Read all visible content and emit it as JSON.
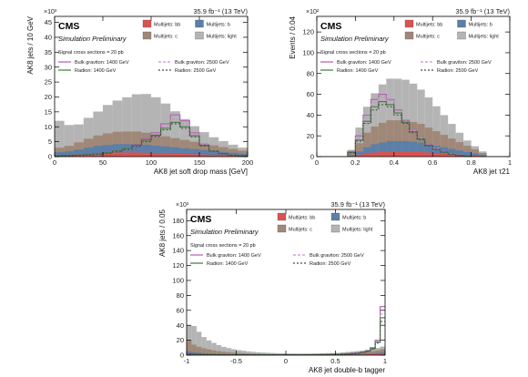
{
  "chart_data": [
    {
      "type": "area",
      "title": "",
      "header_left": "×10³",
      "header_right": "35.9 fb⁻¹ (13 TeV)",
      "cms_label": "CMS",
      "sim_label": "Simulation Preliminary",
      "signal_note": "Signal cross sections = 20 pb",
      "xlabel": "AK8 jet soft drop mass [GeV]",
      "ylabel": "AK8 jets / 10 GeV",
      "xlim": [
        0,
        200
      ],
      "ylim": [
        0,
        47000
      ],
      "xticks": [
        0,
        50,
        100,
        150,
        200
      ],
      "yticks": [
        0,
        5,
        10,
        15,
        20,
        25,
        30,
        35,
        40,
        45
      ],
      "bin_edges": [
        0,
        10,
        20,
        30,
        40,
        50,
        60,
        70,
        80,
        90,
        100,
        110,
        120,
        130,
        140,
        150,
        160,
        170,
        180,
        190,
        200
      ],
      "stack": [
        {
          "name": "Multijets: bb",
          "color": "#d9534f",
          "values": [
            500,
            600,
            800,
            1000,
            1200,
            1300,
            1400,
            1400,
            1400,
            1300,
            1200,
            1100,
            1000,
            900,
            800,
            700,
            600,
            500,
            400,
            300
          ]
        },
        {
          "name": "Multijets: b",
          "color": "#5b7fa8",
          "values": [
            1000,
            1200,
            1600,
            2000,
            2400,
            2600,
            2800,
            2800,
            2800,
            2700,
            2500,
            2300,
            2100,
            1900,
            1700,
            1500,
            1300,
            1100,
            900,
            700
          ]
        },
        {
          "name": "Multijets: c",
          "color": "#a08878",
          "values": [
            1500,
            1800,
            2400,
            3000,
            3500,
            3900,
            4100,
            4200,
            4200,
            4000,
            3700,
            3400,
            3100,
            2800,
            2500,
            2200,
            1900,
            1600,
            1300,
            1000
          ]
        },
        {
          "name": "Multijets: light",
          "color": "#b4b4b4",
          "values": [
            9000,
            7000,
            6000,
            7000,
            8000,
            9500,
            10500,
            11500,
            12500,
            13000,
            12500,
            11000,
            9000,
            7000,
            5200,
            3800,
            2700,
            2000,
            1400,
            1000
          ]
        }
      ],
      "signals": [
        {
          "name": "Bulk graviton: 1400 GeV",
          "color": "#b05fb0",
          "dash": "",
          "values": [
            300,
            400,
            500,
            700,
            900,
            1300,
            1900,
            2800,
            4000,
            6000,
            8000,
            11000,
            14000,
            12000,
            8000,
            4000,
            2000,
            1000,
            500,
            300
          ]
        },
        {
          "name": "Bulk graviton: 2500 GeV",
          "color": "#c98dc9",
          "dash": "3,2",
          "values": [
            200,
            300,
            400,
            600,
            800,
            1200,
            1700,
            2500,
            3600,
            5500,
            7500,
            10000,
            12500,
            11000,
            7500,
            4000,
            2000,
            1000,
            500,
            300
          ]
        },
        {
          "name": "Radion: 1400 GeV",
          "color": "#3d7a3d",
          "dash": "",
          "values": [
            300,
            400,
            500,
            700,
            900,
            1300,
            1900,
            2700,
            3800,
            5500,
            7200,
            9500,
            11500,
            10000,
            7000,
            3800,
            1900,
            1000,
            500,
            300
          ]
        },
        {
          "name": "Radion: 2500 GeV",
          "color": "#4a4a4a",
          "dash": "2,2",
          "values": [
            200,
            300,
            400,
            600,
            800,
            1100,
            1600,
            2400,
            3400,
            5000,
            6800,
            9000,
            11000,
            9500,
            6600,
            3600,
            1800,
            900,
            450,
            250
          ]
        }
      ]
    },
    {
      "type": "area",
      "title": "",
      "header_left": "×10²",
      "header_right": "35.9 fb⁻¹ (13 TeV)",
      "cms_label": "CMS",
      "sim_label": "Simulation Preliminary",
      "signal_note": "Signal cross sections = 20 pb",
      "xlabel": "AK8 jet τ21",
      "ylabel": "Events / 0.04",
      "xlim": [
        0,
        1
      ],
      "ylim": [
        0,
        13500
      ],
      "xticks": [
        0,
        0.2,
        0.4,
        0.6,
        0.8,
        1
      ],
      "yticks": [
        0,
        20,
        40,
        60,
        80,
        100,
        120
      ],
      "bin_edges": [
        0,
        0.04,
        0.08,
        0.12,
        0.16,
        0.2,
        0.24,
        0.28,
        0.32,
        0.36,
        0.4,
        0.44,
        0.48,
        0.52,
        0.56,
        0.6,
        0.64,
        0.68,
        0.72,
        0.76,
        0.8,
        0.84,
        0.88,
        0.92,
        0.96,
        1
      ],
      "stack": [
        {
          "name": "Multijets: bb",
          "color": "#d9534f",
          "values": [
            0,
            0,
            0,
            0,
            50,
            200,
            300,
            400,
            450,
            500,
            500,
            500,
            480,
            450,
            400,
            350,
            300,
            250,
            200,
            150,
            100,
            50,
            0,
            0,
            0
          ]
        },
        {
          "name": "Multijets: b",
          "color": "#5b7fa8",
          "values": [
            0,
            0,
            0,
            0,
            100,
            300,
            600,
            800,
            900,
            1000,
            1000,
            1000,
            950,
            900,
            800,
            700,
            600,
            500,
            400,
            300,
            200,
            100,
            0,
            0,
            0
          ]
        },
        {
          "name": "Multijets: c",
          "color": "#a08878",
          "values": [
            0,
            0,
            0,
            0,
            200,
            800,
            1400,
            1700,
            1900,
            2000,
            2000,
            2000,
            1900,
            1800,
            1600,
            1400,
            1200,
            1000,
            800,
            600,
            400,
            200,
            0,
            0,
            0
          ]
        },
        {
          "name": "Multijets: light",
          "color": "#b4b4b4",
          "values": [
            0,
            0,
            0,
            0,
            300,
            1500,
            2500,
            3200,
            3700,
            4000,
            4000,
            3900,
            3700,
            3300,
            2900,
            2400,
            1900,
            1400,
            900,
            500,
            300,
            150,
            0,
            0,
            0
          ]
        }
      ],
      "signals": [
        {
          "name": "Bulk graviton: 1400 GeV",
          "color": "#b05fb0",
          "dash": "",
          "values": [
            0,
            0,
            0,
            0,
            500,
            2000,
            4000,
            5500,
            6000,
            5500,
            4500,
            3500,
            2500,
            1800,
            1200,
            800,
            500,
            300,
            150,
            80,
            0,
            0,
            0,
            0,
            0
          ]
        },
        {
          "name": "Bulk graviton: 2500 GeV",
          "color": "#c98dc9",
          "dash": "3,2",
          "values": [
            0,
            0,
            0,
            0,
            400,
            1800,
            3800,
            5200,
            5800,
            5400,
            4400,
            3400,
            2500,
            1800,
            1200,
            800,
            500,
            300,
            150,
            80,
            0,
            0,
            0,
            0,
            0
          ]
        },
        {
          "name": "Radion: 1400 GeV",
          "color": "#3d7a3d",
          "dash": "",
          "values": [
            0,
            0,
            0,
            0,
            400,
            1600,
            3400,
            4800,
            5300,
            5000,
            4200,
            3300,
            2400,
            1700,
            1100,
            700,
            450,
            250,
            120,
            60,
            0,
            0,
            0,
            0,
            0
          ]
        },
        {
          "name": "Radion: 2500 GeV",
          "color": "#4a4a4a",
          "dash": "2,2",
          "values": [
            0,
            0,
            0,
            0,
            350,
            1500,
            3200,
            4500,
            5000,
            4800,
            4000,
            3200,
            2300,
            1600,
            1050,
            680,
            430,
            240,
            110,
            50,
            0,
            0,
            0,
            0,
            0
          ]
        }
      ]
    },
    {
      "type": "area",
      "title": "",
      "header_left": "×10³",
      "header_right": "35.9 fb⁻¹ (13 TeV)",
      "cms_label": "CMS",
      "sim_label": "Simulation Preliminary",
      "signal_note": "Signal cross sections = 20 pb",
      "xlabel": "AK8 jet double-b tagger",
      "ylabel": "AK8 jets / 0.05",
      "xlim": [
        -1,
        1
      ],
      "ylim": [
        0,
        195000
      ],
      "xticks": [
        -1,
        -0.5,
        0,
        0.5,
        1
      ],
      "yticks": [
        0,
        20,
        40,
        60,
        80,
        100,
        120,
        140,
        160,
        180
      ],
      "bin_edges": [
        -1,
        -0.95,
        -0.9,
        -0.85,
        -0.8,
        -0.75,
        -0.7,
        -0.65,
        -0.6,
        -0.55,
        -0.5,
        -0.45,
        -0.4,
        -0.35,
        -0.3,
        -0.25,
        -0.2,
        -0.15,
        -0.1,
        -0.05,
        0,
        0.05,
        0.1,
        0.15,
        0.2,
        0.25,
        0.3,
        0.35,
        0.4,
        0.45,
        0.5,
        0.55,
        0.6,
        0.65,
        0.7,
        0.75,
        0.8,
        0.85,
        0.9,
        0.95,
        1
      ],
      "stack": [
        {
          "name": "Multijets: bb",
          "color": "#d9534f",
          "values": [
            2000,
            1500,
            1200,
            1000,
            800,
            700,
            600,
            500,
            450,
            400,
            350,
            300,
            300,
            250,
            250,
            200,
            200,
            200,
            200,
            200,
            200,
            200,
            200,
            200,
            200,
            250,
            250,
            300,
            300,
            350,
            400,
            500,
            600,
            700,
            800,
            900,
            1000,
            1200,
            1500,
            2000
          ]
        },
        {
          "name": "Multijets: b",
          "color": "#5b7fa8",
          "values": [
            3000,
            2500,
            2000,
            1700,
            1400,
            1200,
            1000,
            900,
            800,
            700,
            600,
            550,
            500,
            450,
            400,
            380,
            360,
            340,
            320,
            300,
            300,
            300,
            300,
            300,
            300,
            320,
            350,
            380,
            400,
            450,
            500,
            600,
            700,
            800,
            900,
            1000,
            1200,
            1400,
            1600,
            2000
          ]
        },
        {
          "name": "Multijets: c",
          "color": "#a08878",
          "values": [
            15000,
            10000,
            8000,
            6500,
            5500,
            4500,
            3800,
            3200,
            2700,
            2300,
            2000,
            1800,
            1600,
            1400,
            1200,
            1100,
            1000,
            900,
            800,
            750,
            700,
            700,
            700,
            700,
            700,
            750,
            800,
            900,
            1000,
            1100,
            1200,
            1400,
            1600,
            1800,
            2000,
            2300,
            2600,
            3000,
            3500,
            4000
          ]
        },
        {
          "name": "Multijets: light",
          "color": "#b4b4b4",
          "values": [
            20000,
            25000,
            20000,
            15000,
            12000,
            10000,
            8000,
            6500,
            5500,
            4500,
            3800,
            3200,
            2700,
            2300,
            2000,
            1800,
            1600,
            1400,
            1300,
            1200,
            1100,
            1000,
            1000,
            1000,
            1000,
            1000,
            1000,
            1000,
            1000,
            1000,
            1000,
            1200,
            1400,
            1600,
            1800,
            2000,
            2200,
            2500,
            3000,
            3500
          ]
        }
      ],
      "signals": [
        {
          "name": "Bulk graviton: 1400 GeV",
          "color": "#b05fb0",
          "dash": "",
          "values": [
            2000,
            1500,
            1200,
            1000,
            900,
            800,
            700,
            650,
            600,
            550,
            500,
            500,
            500,
            500,
            500,
            500,
            500,
            500,
            500,
            500,
            500,
            500,
            500,
            500,
            500,
            550,
            600,
            700,
            800,
            900,
            1000,
            1200,
            1500,
            2000,
            2800,
            4000,
            6000,
            10000,
            20000,
            65000
          ]
        },
        {
          "name": "Bulk graviton: 2500 GeV",
          "color": "#c98dc9",
          "dash": "3,2",
          "values": [
            1800,
            1400,
            1100,
            900,
            800,
            700,
            650,
            600,
            550,
            500,
            480,
            470,
            460,
            450,
            450,
            450,
            450,
            450,
            450,
            450,
            450,
            450,
            450,
            450,
            450,
            500,
            550,
            650,
            750,
            850,
            950,
            1150,
            1400,
            1900,
            2600,
            3800,
            5500,
            9000,
            18000,
            55000
          ]
        },
        {
          "name": "Radion: 1400 GeV",
          "color": "#3d7a3d",
          "dash": "",
          "values": [
            1800,
            1400,
            1100,
            900,
            800,
            700,
            650,
            600,
            550,
            500,
            480,
            470,
            460,
            450,
            450,
            450,
            450,
            450,
            450,
            450,
            450,
            450,
            450,
            450,
            450,
            500,
            550,
            650,
            750,
            850,
            950,
            1150,
            1400,
            1900,
            2600,
            3700,
            5400,
            8800,
            17500,
            50000
          ]
        },
        {
          "name": "Radion: 2500 GeV",
          "color": "#4a4a4a",
          "dash": "2,2",
          "values": [
            1600,
            1300,
            1000,
            850,
            750,
            650,
            600,
            550,
            500,
            470,
            450,
            440,
            430,
            420,
            420,
            420,
            420,
            420,
            420,
            420,
            420,
            420,
            420,
            420,
            420,
            460,
            520,
            600,
            700,
            800,
            900,
            1100,
            1300,
            1800,
            2500,
            3500,
            5000,
            8000,
            16000,
            45000
          ]
        }
      ]
    }
  ]
}
